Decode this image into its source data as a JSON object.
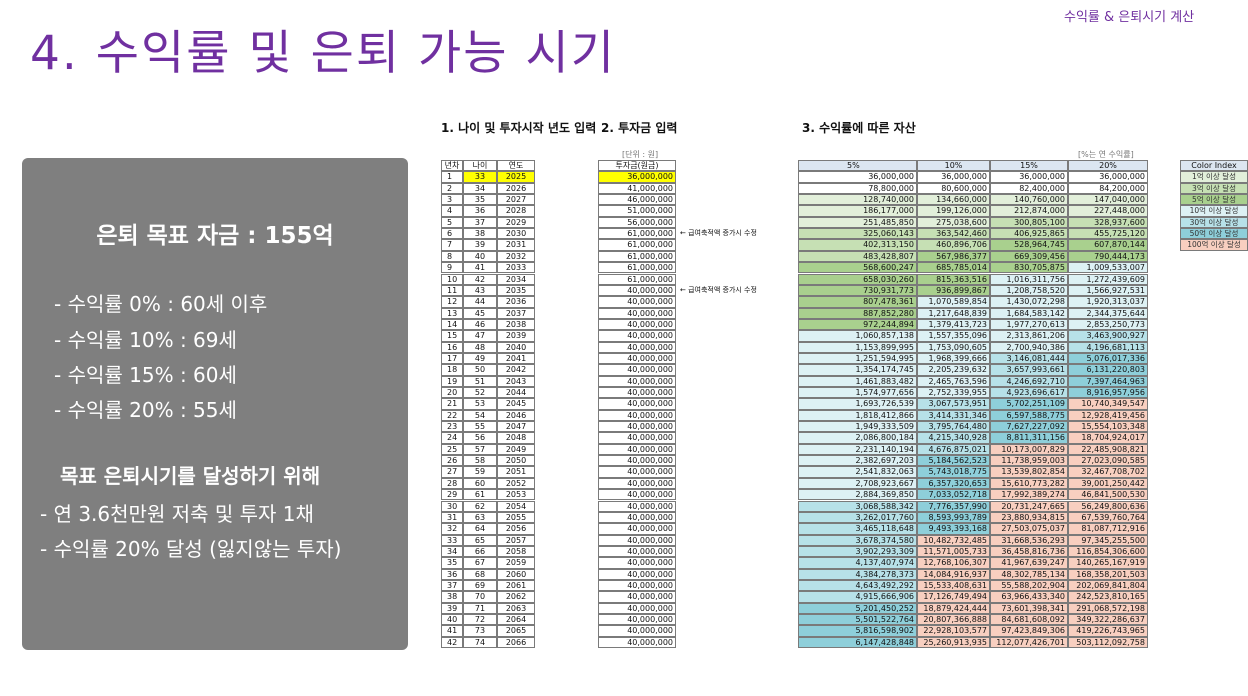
{
  "header": {
    "title": "4. 수익률 및 은퇴 가능 시기",
    "corner_label": "수익률 & 은퇴시기 계산"
  },
  "summary": {
    "goal": "은퇴 목표 자금 : 155억",
    "lines": [
      "- 수익률   0% : 60세 이후",
      "- 수익률 10% : 69세",
      "- 수익률 15% : 60세",
      "- 수익률 20% : 55세"
    ],
    "plan_title": "목표 은퇴시기를 달성하기 위해",
    "plan_lines": [
      "- 연 3.6천만원 저축 및 투자 1채",
      "- 수익률 20% 달성 (잃지않는 투자)"
    ]
  },
  "sheet": {
    "section1_title": "1. 나이 및 투자시작 년도 입력",
    "section2_title": "2. 투자금 입력",
    "section3_title": "3. 수익률에 따른 자산",
    "unit_note": "[단위 : 원]",
    "rate_note": "[%는 연 수익률]",
    "age_table": {
      "columns": [
        "년차",
        "나이",
        "연도"
      ],
      "rows": [
        [
          1,
          33,
          2025
        ],
        [
          2,
          34,
          2026
        ],
        [
          3,
          35,
          2027
        ],
        [
          4,
          36,
          2028
        ],
        [
          5,
          37,
          2029
        ],
        [
          6,
          38,
          2030
        ],
        [
          7,
          39,
          2031
        ],
        [
          8,
          40,
          2032
        ],
        [
          9,
          41,
          2033
        ],
        [
          10,
          42,
          2034
        ],
        [
          11,
          43,
          2035
        ],
        [
          12,
          44,
          2036
        ],
        [
          13,
          45,
          2037
        ],
        [
          14,
          46,
          2038
        ],
        [
          15,
          47,
          2039
        ],
        [
          16,
          48,
          2040
        ],
        [
          17,
          49,
          2041
        ],
        [
          18,
          50,
          2042
        ],
        [
          19,
          51,
          2043
        ],
        [
          20,
          52,
          2044
        ],
        [
          21,
          53,
          2045
        ],
        [
          22,
          54,
          2046
        ],
        [
          23,
          55,
          2047
        ],
        [
          24,
          56,
          2048
        ],
        [
          25,
          57,
          2049
        ],
        [
          26,
          58,
          2050
        ],
        [
          27,
          59,
          2051
        ],
        [
          28,
          60,
          2052
        ],
        [
          29,
          61,
          2053
        ],
        [
          30,
          62,
          2054
        ],
        [
          31,
          63,
          2055
        ],
        [
          32,
          64,
          2056
        ],
        [
          33,
          65,
          2057
        ],
        [
          34,
          66,
          2058
        ],
        [
          35,
          67,
          2059
        ],
        [
          36,
          68,
          2060
        ],
        [
          37,
          69,
          2061
        ],
        [
          38,
          70,
          2062
        ],
        [
          39,
          71,
          2063
        ],
        [
          40,
          72,
          2064
        ],
        [
          41,
          73,
          2065
        ],
        [
          42,
          74,
          2066
        ]
      ]
    },
    "investment": {
      "column": "투자금(원금)",
      "values": [
        "36,000,000",
        "41,000,000",
        "46,000,000",
        "51,000,000",
        "56,000,000",
        "61,000,000",
        "61,000,000",
        "61,000,000",
        "61,000,000",
        "61,000,000",
        "40,000,000",
        "40,000,000",
        "40,000,000",
        "40,000,000",
        "40,000,000",
        "40,000,000",
        "40,000,000",
        "40,000,000",
        "40,000,000",
        "40,000,000",
        "40,000,000",
        "40,000,000",
        "40,000,000",
        "40,000,000",
        "40,000,000",
        "40,000,000",
        "40,000,000",
        "40,000,000",
        "40,000,000",
        "40,000,000",
        "40,000,000",
        "40,000,000",
        "40,000,000",
        "40,000,000",
        "40,000,000",
        "40,000,000",
        "40,000,000",
        "40,000,000",
        "40,000,000",
        "40,000,000",
        "40,000,000",
        "40,000,000"
      ],
      "notes": [
        null,
        null,
        null,
        null,
        null,
        "← 급여축적액 증가시 수정",
        null,
        null,
        null,
        null,
        "← 급여축적액 증가시 수정",
        null,
        null,
        null,
        null,
        null,
        null,
        null,
        null,
        null,
        null,
        null,
        null,
        null,
        null,
        null,
        null,
        null,
        null,
        null,
        null,
        null,
        null,
        null,
        null,
        null,
        null,
        null,
        null,
        null,
        null,
        null
      ]
    },
    "growth": {
      "columns": [
        "5%",
        "10%",
        "15%",
        "20%"
      ],
      "rows": [
        [
          "36,000,000",
          "36,000,000",
          "36,000,000",
          "36,000,000"
        ],
        [
          "78,800,000",
          "80,600,000",
          "82,400,000",
          "84,200,000"
        ],
        [
          "128,740,000",
          "134,660,000",
          "140,760,000",
          "147,040,000"
        ],
        [
          "186,177,000",
          "199,126,000",
          "212,874,000",
          "227,448,000"
        ],
        [
          "251,485,850",
          "275,038,600",
          "300,805,100",
          "328,937,600"
        ],
        [
          "325,060,143",
          "363,542,460",
          "406,925,865",
          "455,725,120"
        ],
        [
          "402,313,150",
          "460,896,706",
          "528,964,745",
          "607,870,144"
        ],
        [
          "483,428,807",
          "567,986,377",
          "669,309,456",
          "790,444,173"
        ],
        [
          "568,600,247",
          "685,785,014",
          "830,705,875",
          "1,009,533,007"
        ],
        [
          "658,030,260",
          "815,363,516",
          "1,016,311,756",
          "1,272,439,609"
        ],
        [
          "730,931,773",
          "936,899,867",
          "1,208,758,520",
          "1,566,927,531"
        ],
        [
          "807,478,361",
          "1,070,589,854",
          "1,430,072,298",
          "1,920,313,037"
        ],
        [
          "887,852,280",
          "1,217,648,839",
          "1,684,583,142",
          "2,344,375,644"
        ],
        [
          "972,244,894",
          "1,379,413,723",
          "1,977,270,613",
          "2,853,250,773"
        ],
        [
          "1,060,857,138",
          "1,557,355,096",
          "2,313,861,206",
          "3,463,900,927"
        ],
        [
          "1,153,899,995",
          "1,753,090,605",
          "2,700,940,386",
          "4,196,681,113"
        ],
        [
          "1,251,594,995",
          "1,968,399,666",
          "3,146,081,444",
          "5,076,017,336"
        ],
        [
          "1,354,174,745",
          "2,205,239,632",
          "3,657,993,661",
          "6,131,220,803"
        ],
        [
          "1,461,883,482",
          "2,465,763,596",
          "4,246,692,710",
          "7,397,464,963"
        ],
        [
          "1,574,977,656",
          "2,752,339,955",
          "4,923,696,617",
          "8,916,957,956"
        ],
        [
          "1,693,726,539",
          "3,067,573,951",
          "5,702,251,109",
          "10,740,349,547"
        ],
        [
          "1,818,412,866",
          "3,414,331,346",
          "6,597,588,775",
          "12,928,419,456"
        ],
        [
          "1,949,333,509",
          "3,795,764,480",
          "7,627,227,092",
          "15,554,103,348"
        ],
        [
          "2,086,800,184",
          "4,215,340,928",
          "8,811,311,156",
          "18,704,924,017"
        ],
        [
          "2,231,140,194",
          "4,676,875,021",
          "10,173,007,829",
          "22,485,908,821"
        ],
        [
          "2,382,697,203",
          "5,184,562,523",
          "11,738,959,003",
          "27,023,090,585"
        ],
        [
          "2,541,832,063",
          "5,743,018,775",
          "13,539,802,854",
          "32,467,708,702"
        ],
        [
          "2,708,923,667",
          "6,357,320,653",
          "15,610,773,282",
          "39,001,250,442"
        ],
        [
          "2,884,369,850",
          "7,033,052,718",
          "17,992,389,274",
          "46,841,500,530"
        ],
        [
          "3,068,588,342",
          "7,776,357,990",
          "20,731,247,665",
          "56,249,800,636"
        ],
        [
          "3,262,017,760",
          "8,593,993,789",
          "23,880,934,815",
          "67,539,760,764"
        ],
        [
          "3,465,118,648",
          "9,493,393,168",
          "27,503,075,037",
          "81,087,712,916"
        ],
        [
          "3,678,374,580",
          "10,482,732,485",
          "31,668,536,293",
          "97,345,255,500"
        ],
        [
          "3,902,293,309",
          "11,571,005,733",
          "36,458,816,736",
          "116,854,306,600"
        ],
        [
          "4,137,407,974",
          "12,768,106,307",
          "41,967,639,247",
          "140,265,167,919"
        ],
        [
          "4,384,278,373",
          "14,084,916,937",
          "48,302,785,134",
          "168,358,201,503"
        ],
        [
          "4,643,492,292",
          "15,533,408,631",
          "55,588,202,904",
          "202,069,841,804"
        ],
        [
          "4,915,666,906",
          "17,126,749,494",
          "63,966,433,340",
          "242,523,810,165"
        ],
        [
          "5,201,450,252",
          "18,879,424,444",
          "73,601,398,341",
          "291,068,572,198"
        ],
        [
          "5,501,522,764",
          "20,807,366,888",
          "84,681,608,092",
          "349,322,286,637"
        ],
        [
          "5,816,598,902",
          "22,928,103,577",
          "97,423,849,306",
          "419,226,743,965"
        ],
        [
          "6,147,428,848",
          "25,260,913,935",
          "112,077,426,701",
          "503,112,092,758"
        ]
      ]
    },
    "color_index": {
      "title": "Color Index",
      "items": [
        {
          "label": "1억 이상 달성",
          "color": "#e2efda",
          "threshold": 100000000
        },
        {
          "label": "3억 이상 달성",
          "color": "#c6e0b4",
          "threshold": 300000000
        },
        {
          "label": "5억 이상 달성",
          "color": "#a9d08e",
          "threshold": 500000000
        },
        {
          "label": "10억 이상 달성",
          "color": "#ddf1f4",
          "threshold": 1000000000
        },
        {
          "label": "30억 이상 달성",
          "color": "#b7e1e8",
          "threshold": 3000000000
        },
        {
          "label": "50억 이상 달성",
          "color": "#8ecfda",
          "threshold": 5000000000
        },
        {
          "label": "100억 이상 달성",
          "color": "#f8cfc0",
          "threshold": 10000000000
        }
      ]
    }
  }
}
